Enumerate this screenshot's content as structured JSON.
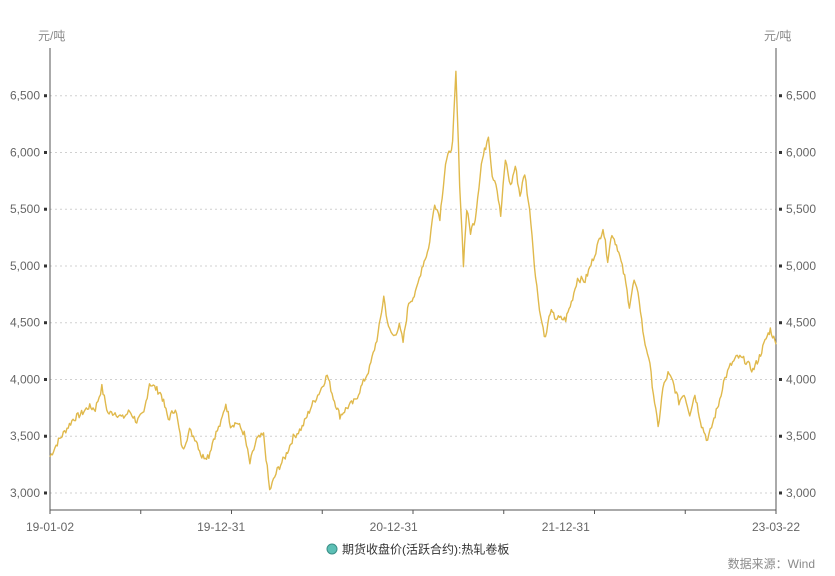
{
  "chart_data": {
    "type": "line",
    "unit_left": "元/吨",
    "unit_right": "元/吨",
    "ylim": [
      2850,
      6850
    ],
    "y_ticks": [
      3000,
      3500,
      4000,
      4500,
      5000,
      5500,
      6000,
      6500
    ],
    "y_tick_labels": [
      "3,000",
      "3,500",
      "4,000",
      "4,500",
      "5,000",
      "5,500",
      "6,000",
      "6,500"
    ],
    "x_ticks": [
      "2019-01-02",
      "2019-12-31",
      "2020-12-31",
      "2021-12-31",
      "2023-03-22"
    ],
    "x_tick_labels": [
      "19-01-02",
      "19-12-31",
      "20-12-31",
      "21-12-31",
      "23-03-22"
    ],
    "series": [
      {
        "name": "期货收盘价(活跃合约):热轧卷板",
        "color": "#e0b94c",
        "points": [
          [
            "2019-01-02",
            3320
          ],
          [
            "2019-01-20",
            3460
          ],
          [
            "2019-02-20",
            3650
          ],
          [
            "2019-03-10",
            3700
          ],
          [
            "2019-03-25",
            3760
          ],
          [
            "2019-04-08",
            3740
          ],
          [
            "2019-04-22",
            3930
          ],
          [
            "2019-05-05",
            3700
          ],
          [
            "2019-05-20",
            3710
          ],
          [
            "2019-06-05",
            3660
          ],
          [
            "2019-06-20",
            3720
          ],
          [
            "2019-07-05",
            3630
          ],
          [
            "2019-07-20",
            3700
          ],
          [
            "2019-08-01",
            3970
          ],
          [
            "2019-08-12",
            3930
          ],
          [
            "2019-08-26",
            3870
          ],
          [
            "2019-09-10",
            3650
          ],
          [
            "2019-09-25",
            3750
          ],
          [
            "2019-10-10",
            3380
          ],
          [
            "2019-10-25",
            3550
          ],
          [
            "2019-11-08",
            3470
          ],
          [
            "2019-11-20",
            3320
          ],
          [
            "2019-12-05",
            3330
          ],
          [
            "2019-12-15",
            3480
          ],
          [
            "2019-12-31",
            3620
          ],
          [
            "2020-01-10",
            3790
          ],
          [
            "2020-01-20",
            3600
          ],
          [
            "2020-02-03",
            3620
          ],
          [
            "2020-02-18",
            3520
          ],
          [
            "2020-03-01",
            3260
          ],
          [
            "2020-03-15",
            3470
          ],
          [
            "2020-03-30",
            3510
          ],
          [
            "2020-04-12",
            3020
          ],
          [
            "2020-04-28",
            3200
          ],
          [
            "2020-05-15",
            3320
          ],
          [
            "2020-06-01",
            3490
          ],
          [
            "2020-06-20",
            3580
          ],
          [
            "2020-07-10",
            3770
          ],
          [
            "2020-07-28",
            3900
          ],
          [
            "2020-08-12",
            4040
          ],
          [
            "2020-08-25",
            3840
          ],
          [
            "2020-09-08",
            3680
          ],
          [
            "2020-09-25",
            3760
          ],
          [
            "2020-10-10",
            3810
          ],
          [
            "2020-10-25",
            3950
          ],
          [
            "2020-11-10",
            4100
          ],
          [
            "2020-11-28",
            4400
          ],
          [
            "2020-12-10",
            4730
          ],
          [
            "2020-12-20",
            4450
          ],
          [
            "2020-12-31",
            4380
          ],
          [
            "2021-01-12",
            4470
          ],
          [
            "2021-01-20",
            4330
          ],
          [
            "2021-02-01",
            4680
          ],
          [
            "2021-02-15",
            4750
          ],
          [
            "2021-03-01",
            4990
          ],
          [
            "2021-03-15",
            5150
          ],
          [
            "2021-03-28",
            5560
          ],
          [
            "2021-04-08",
            5430
          ],
          [
            "2021-04-20",
            5900
          ],
          [
            "2021-05-05",
            6080
          ],
          [
            "2021-05-12",
            6700
          ],
          [
            "2021-05-20",
            5730
          ],
          [
            "2021-05-28",
            5020
          ],
          [
            "2021-06-04",
            5500
          ],
          [
            "2021-06-12",
            5300
          ],
          [
            "2021-06-22",
            5420
          ],
          [
            "2021-07-05",
            5900
          ],
          [
            "2021-07-14",
            6050
          ],
          [
            "2021-07-20",
            6160
          ],
          [
            "2021-07-28",
            5800
          ],
          [
            "2021-08-05",
            5740
          ],
          [
            "2021-08-15",
            5440
          ],
          [
            "2021-08-25",
            5940
          ],
          [
            "2021-09-05",
            5700
          ],
          [
            "2021-09-15",
            5880
          ],
          [
            "2021-09-25",
            5620
          ],
          [
            "2021-10-05",
            5820
          ],
          [
            "2021-10-18",
            5400
          ],
          [
            "2021-10-28",
            4900
          ],
          [
            "2021-11-08",
            4550
          ],
          [
            "2021-11-18",
            4360
          ],
          [
            "2021-11-28",
            4600
          ],
          [
            "2021-12-10",
            4540
          ],
          [
            "2021-12-31",
            4530
          ],
          [
            "2022-01-12",
            4680
          ],
          [
            "2022-01-25",
            4890
          ],
          [
            "2022-02-10",
            4870
          ],
          [
            "2022-02-25",
            5040
          ],
          [
            "2022-03-10",
            5200
          ],
          [
            "2022-03-20",
            5340
          ],
          [
            "2022-03-30",
            5060
          ],
          [
            "2022-04-08",
            5290
          ],
          [
            "2022-04-20",
            5160
          ],
          [
            "2022-05-05",
            4900
          ],
          [
            "2022-05-15",
            4650
          ],
          [
            "2022-05-25",
            4870
          ],
          [
            "2022-06-05",
            4700
          ],
          [
            "2022-06-15",
            4350
          ],
          [
            "2022-06-25",
            4200
          ],
          [
            "2022-07-05",
            3880
          ],
          [
            "2022-07-15",
            3570
          ],
          [
            "2022-07-25",
            3920
          ],
          [
            "2022-08-05",
            4050
          ],
          [
            "2022-08-15",
            3980
          ],
          [
            "2022-08-28",
            3800
          ],
          [
            "2022-09-08",
            3880
          ],
          [
            "2022-09-20",
            3700
          ],
          [
            "2022-10-01",
            3870
          ],
          [
            "2022-10-15",
            3600
          ],
          [
            "2022-10-28",
            3460
          ],
          [
            "2022-11-08",
            3620
          ],
          [
            "2022-11-20",
            3780
          ],
          [
            "2022-12-01",
            3980
          ],
          [
            "2022-12-15",
            4120
          ],
          [
            "2022-12-30",
            4200
          ],
          [
            "2023-01-15",
            4170
          ],
          [
            "2023-02-01",
            4080
          ],
          [
            "2023-02-15",
            4200
          ],
          [
            "2023-03-01",
            4360
          ],
          [
            "2023-03-10",
            4440
          ],
          [
            "2023-03-22",
            4310
          ]
        ]
      }
    ],
    "grid": true,
    "legend_position": "bottom",
    "source": "数据来源：Wind"
  }
}
